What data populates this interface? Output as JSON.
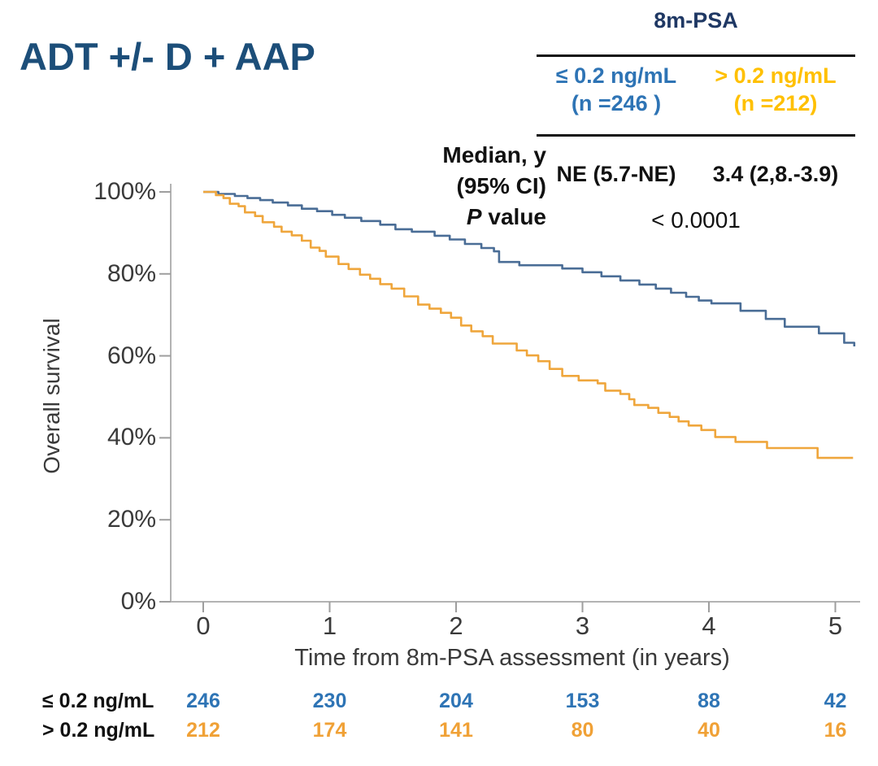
{
  "title": "ADT +/- D + AAP",
  "summary_table": {
    "header": "8m-PSA",
    "col1": {
      "line1": "≤ 0.2 ng/mL",
      "line2": "(n =246 )",
      "color": "#2e74b5"
    },
    "col2": {
      "line1": "> 0.2 ng/mL",
      "line2": "(n =212)",
      "color": "#ffc000"
    },
    "row_median_label_line1": "Median, y",
    "row_median_label_line2": "(95% CI)",
    "row_p_label_italic": "P",
    "row_p_label_rest": " value",
    "median_col1": "NE (5.7-NE)",
    "median_col2": "3.4 (2,8.-3.9)",
    "p_value": "< 0.0001"
  },
  "chart_data": {
    "type": "line",
    "subtype": "kaplan-meier-step",
    "title": "",
    "xlabel": "Time from 8m-PSA assessment (in years)",
    "ylabel": "Overall survival",
    "xlim": [
      0,
      5.2
    ],
    "ylim": [
      0,
      100
    ],
    "grid": false,
    "legend_position": "none",
    "xticks": [
      0,
      1,
      2,
      3,
      4,
      5
    ],
    "yticks": [
      {
        "label": "100%",
        "value": 100
      },
      {
        "label": "80%",
        "value": 80
      },
      {
        "label": "60%",
        "value": 60
      },
      {
        "label": "40%",
        "value": 40
      },
      {
        "label": "20%",
        "value": 20
      },
      {
        "label": "0%",
        "value": 0
      }
    ],
    "series": [
      {
        "name": "≤ 0.2 ng/mL",
        "color": "#4a6d96",
        "points": [
          [
            0,
            100
          ],
          [
            0.12,
            99.5
          ],
          [
            0.25,
            99
          ],
          [
            0.35,
            98.5
          ],
          [
            0.45,
            98
          ],
          [
            0.55,
            97.4
          ],
          [
            0.67,
            96.7
          ],
          [
            0.78,
            95.9
          ],
          [
            0.9,
            95.3
          ],
          [
            1.02,
            94.4
          ],
          [
            1.12,
            93.7
          ],
          [
            1.25,
            92.9
          ],
          [
            1.4,
            92
          ],
          [
            1.52,
            90.9
          ],
          [
            1.65,
            90.3
          ],
          [
            1.83,
            89.3
          ],
          [
            1.95,
            88.4
          ],
          [
            2.07,
            87.3
          ],
          [
            2.2,
            86.3
          ],
          [
            2.3,
            85.5
          ],
          [
            2.34,
            82.9
          ],
          [
            2.5,
            82.1
          ],
          [
            2.84,
            81.3
          ],
          [
            3.0,
            80.4
          ],
          [
            3.15,
            79.4
          ],
          [
            3.3,
            78.4
          ],
          [
            3.45,
            77.4
          ],
          [
            3.58,
            76.4
          ],
          [
            3.7,
            75.4
          ],
          [
            3.82,
            74.4
          ],
          [
            3.92,
            73.5
          ],
          [
            4.02,
            72.8
          ],
          [
            4.25,
            71
          ],
          [
            4.45,
            69
          ],
          [
            4.6,
            67.1
          ],
          [
            4.87,
            65.5
          ],
          [
            5.07,
            63.2
          ],
          [
            5.15,
            62.3
          ]
        ]
      },
      {
        "name": "> 0.2 ng/mL",
        "color": "#efa63c",
        "points": [
          [
            0,
            100
          ],
          [
            0.1,
            99.2
          ],
          [
            0.16,
            98.5
          ],
          [
            0.21,
            97.1
          ],
          [
            0.28,
            96.5
          ],
          [
            0.33,
            95
          ],
          [
            0.41,
            94.1
          ],
          [
            0.47,
            92.6
          ],
          [
            0.56,
            91.5
          ],
          [
            0.62,
            90.3
          ],
          [
            0.7,
            89.4
          ],
          [
            0.78,
            88.1
          ],
          [
            0.85,
            86.4
          ],
          [
            0.92,
            85.6
          ],
          [
            0.97,
            84.2
          ],
          [
            1.07,
            82.4
          ],
          [
            1.15,
            81.2
          ],
          [
            1.24,
            79.8
          ],
          [
            1.32,
            78.8
          ],
          [
            1.4,
            77.5
          ],
          [
            1.49,
            76.4
          ],
          [
            1.59,
            74.5
          ],
          [
            1.7,
            72.5
          ],
          [
            1.79,
            71.5
          ],
          [
            1.88,
            70.5
          ],
          [
            1.96,
            69.3
          ],
          [
            2.04,
            67.4
          ],
          [
            2.12,
            66
          ],
          [
            2.21,
            64.8
          ],
          [
            2.29,
            63
          ],
          [
            2.48,
            61.3
          ],
          [
            2.56,
            60.1
          ],
          [
            2.65,
            58.7
          ],
          [
            2.74,
            56.8
          ],
          [
            2.84,
            55.1
          ],
          [
            2.97,
            54
          ],
          [
            3.12,
            53.3
          ],
          [
            3.18,
            51.5
          ],
          [
            3.3,
            50.7
          ],
          [
            3.37,
            49.4
          ],
          [
            3.41,
            48
          ],
          [
            3.52,
            47.3
          ],
          [
            3.6,
            46.1
          ],
          [
            3.69,
            45.1
          ],
          [
            3.76,
            44
          ],
          [
            3.84,
            43
          ],
          [
            3.94,
            41.9
          ],
          [
            4.05,
            40.2
          ],
          [
            4.21,
            39
          ],
          [
            4.46,
            37.5
          ],
          [
            4.86,
            35.1
          ],
          [
            5.14,
            35.1
          ]
        ]
      }
    ],
    "risk_table": {
      "rows": [
        {
          "label": "≤ 0.2 ng/mL",
          "color": "#2e74b5",
          "counts": [
            246,
            230,
            204,
            153,
            88,
            42
          ]
        },
        {
          "label": "> 0.2 ng/mL",
          "color": "#f0a136",
          "counts": [
            212,
            174,
            141,
            80,
            40,
            16
          ]
        }
      ]
    }
  }
}
